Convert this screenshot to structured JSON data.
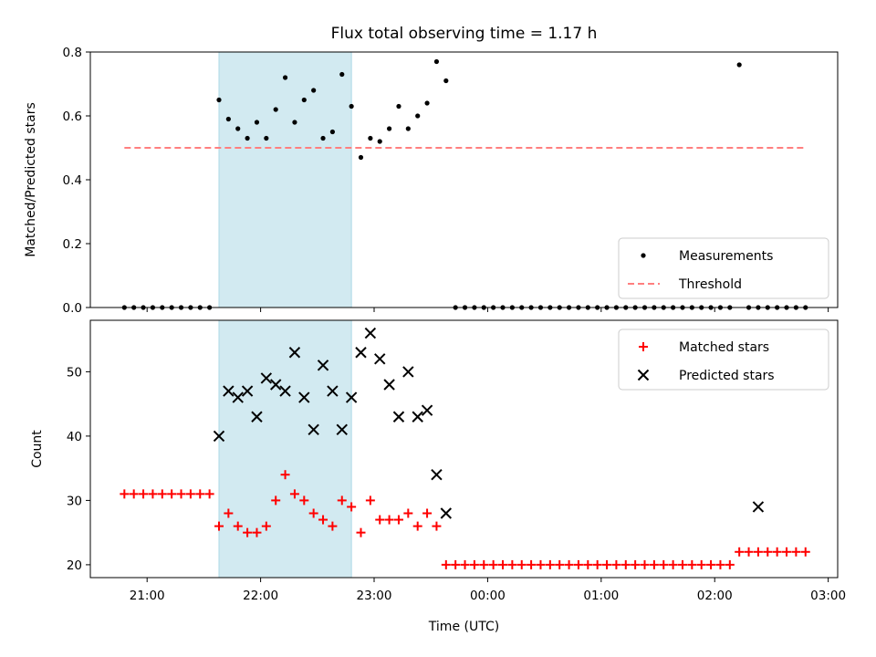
{
  "chart_data": [
    {
      "type": "scatter",
      "title": "Flux total observing time = 1.17 h",
      "ylabel": "Matched/Predicted stars",
      "xlabel": "",
      "ylim": [
        0,
        0.8
      ],
      "yticks": [
        "0.0",
        "0.2",
        "0.4",
        "0.6",
        "0.8"
      ],
      "highlight_span": [
        "21:38",
        "22:48"
      ],
      "highlight_color": "#add8e6",
      "legend_position": "lower right",
      "series": [
        {
          "name": "Measurements",
          "color": "#000000",
          "marker": "dot",
          "x": [
            "20:48",
            "20:53",
            "20:58",
            "21:03",
            "21:08",
            "21:13",
            "21:18",
            "21:23",
            "21:28",
            "21:33",
            "21:38",
            "21:43",
            "21:48",
            "21:53",
            "21:58",
            "22:03",
            "22:08",
            "22:13",
            "22:18",
            "22:23",
            "22:28",
            "22:33",
            "22:38",
            "22:43",
            "22:48",
            "22:53",
            "22:58",
            "23:03",
            "23:08",
            "23:13",
            "23:18",
            "23:23",
            "23:28",
            "23:33",
            "23:38",
            "23:43",
            "23:48",
            "23:53",
            "23:58",
            "00:03",
            "00:08",
            "00:13",
            "00:18",
            "00:23",
            "00:28",
            "00:33",
            "00:38",
            "00:43",
            "00:48",
            "00:53",
            "00:58",
            "01:03",
            "01:08",
            "01:13",
            "01:18",
            "01:23",
            "01:28",
            "01:33",
            "01:38",
            "01:43",
            "01:48",
            "01:53",
            "01:58",
            "02:03",
            "02:08",
            "02:13",
            "02:18",
            "02:23",
            "02:28",
            "02:33",
            "02:38",
            "02:43",
            "02:48"
          ],
          "y": [
            0,
            0,
            0,
            0,
            0,
            0,
            0,
            0,
            0,
            0,
            0.65,
            0.59,
            0.56,
            0.53,
            0.58,
            0.53,
            0.62,
            0.72,
            0.58,
            0.65,
            0.68,
            0.53,
            0.55,
            0.73,
            0.63,
            0.47,
            0.53,
            0.52,
            0.56,
            0.63,
            0.56,
            0.6,
            0.64,
            0.77,
            0.71,
            0,
            0,
            0,
            0,
            0,
            0,
            0,
            0,
            0,
            0,
            0,
            0,
            0,
            0,
            0,
            0,
            0,
            0,
            0,
            0,
            0,
            0,
            0,
            0,
            0,
            0,
            0,
            0,
            0,
            0,
            0.76,
            0,
            0,
            0,
            0,
            0,
            0,
            0
          ]
        },
        {
          "name": "Threshold",
          "color": "#ff7f7f",
          "style": "dashed",
          "x": [
            "20:48",
            "02:48"
          ],
          "y": [
            0.5,
            0.5
          ]
        }
      ]
    },
    {
      "type": "scatter",
      "title": "",
      "ylabel": "Count",
      "xlabel": "Time (UTC)",
      "ylim": [
        18,
        58
      ],
      "yticks": [
        "20",
        "30",
        "40",
        "50"
      ],
      "xticks": [
        "21:00",
        "22:00",
        "23:00",
        "00:00",
        "01:00",
        "02:00",
        "03:00"
      ],
      "highlight_span": [
        "21:38",
        "22:48"
      ],
      "highlight_color": "#add8e6",
      "legend_position": "upper right",
      "series": [
        {
          "name": "Matched stars",
          "color": "#ff0000",
          "marker": "plus",
          "x": [
            "20:48",
            "20:53",
            "20:58",
            "21:03",
            "21:08",
            "21:13",
            "21:18",
            "21:23",
            "21:28",
            "21:33",
            "21:38",
            "21:43",
            "21:48",
            "21:53",
            "21:58",
            "22:03",
            "22:08",
            "22:13",
            "22:18",
            "22:23",
            "22:28",
            "22:33",
            "22:38",
            "22:43",
            "22:48",
            "22:53",
            "22:58",
            "23:03",
            "23:08",
            "23:13",
            "23:18",
            "23:23",
            "23:28",
            "23:33",
            "23:38",
            "23:43",
            "23:48",
            "23:53",
            "23:58",
            "00:03",
            "00:08",
            "00:13",
            "00:18",
            "00:23",
            "00:28",
            "00:33",
            "00:38",
            "00:43",
            "00:48",
            "00:53",
            "00:58",
            "01:03",
            "01:08",
            "01:13",
            "01:18",
            "01:23",
            "01:28",
            "01:33",
            "01:38",
            "01:43",
            "01:48",
            "01:53",
            "01:58",
            "02:03",
            "02:08",
            "02:13",
            "02:18",
            "02:23",
            "02:28",
            "02:33",
            "02:38",
            "02:43",
            "02:48"
          ],
          "y": [
            31,
            31,
            31,
            31,
            31,
            31,
            31,
            31,
            31,
            31,
            26,
            28,
            26,
            25,
            25,
            26,
            30,
            34,
            31,
            30,
            28,
            27,
            26,
            30,
            29,
            25,
            30,
            27,
            27,
            27,
            28,
            26,
            28,
            26,
            20,
            20,
            20,
            20,
            20,
            20,
            20,
            20,
            20,
            20,
            20,
            20,
            20,
            20,
            20,
            20,
            20,
            20,
            20,
            20,
            20,
            20,
            20,
            20,
            20,
            20,
            20,
            20,
            20,
            20,
            20,
            22,
            22,
            22,
            22,
            22,
            22,
            22,
            22
          ]
        },
        {
          "name": "Predicted stars",
          "color": "#000000",
          "marker": "x",
          "x": [
            "21:38",
            "21:43",
            "21:48",
            "21:53",
            "21:58",
            "22:03",
            "22:08",
            "22:13",
            "22:18",
            "22:23",
            "22:28",
            "22:33",
            "22:38",
            "22:43",
            "22:48",
            "22:53",
            "22:58",
            "23:03",
            "23:08",
            "23:13",
            "23:18",
            "23:23",
            "23:28",
            "23:33",
            "23:38",
            "02:23"
          ],
          "y": [
            40,
            47,
            46,
            47,
            43,
            49,
            48,
            47,
            53,
            46,
            41,
            51,
            47,
            41,
            46,
            53,
            56,
            52,
            48,
            43,
            50,
            43,
            44,
            34,
            28,
            29
          ]
        }
      ]
    }
  ]
}
